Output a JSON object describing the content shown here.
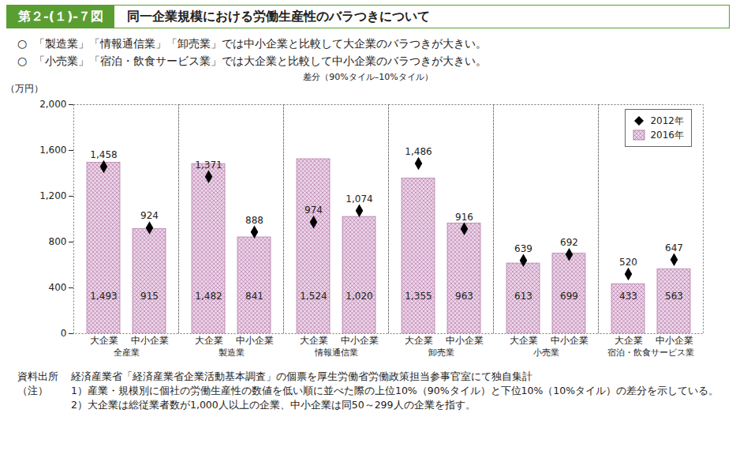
{
  "header": {
    "figure_number": "第２-(１)-７図",
    "title": "同一企業規模における労働生産性のバラつきについて"
  },
  "bullets": [
    "「製造業」「情報通信業」「卸売業」では中小企業と比較して大企業のバラつきが大きい。",
    "「小売業」「宿泊・飲食サービス業」では大企業と比較して中小企業のバラつきが大きい。"
  ],
  "notes": {
    "source_label": "資料出所",
    "source": "経済産業省「経済産業省企業活動基本調査」の個票を厚生労働省労働政策担当参事官室にて独自集計",
    "note_label": "（注）",
    "items": [
      "1）産業・規模別に個社の労働生産性の数値を低い順に並べた際の上位10%（90%タイル）と下位10%（10%タイル）の差分を示している。",
      "2）大企業は総従業者数が1,000人以上の企業、中小企業は同50～299人の企業を指す。"
    ]
  },
  "chart_data": {
    "type": "bar",
    "subtitle": "差分（90%タイル–10%タイル）",
    "y_label": "（万円）",
    "categories": [
      "大企業",
      "中小企業",
      "大企業",
      "中小企業",
      "大企業",
      "中小企業",
      "大企業",
      "中小企業",
      "大企業",
      "中小企業",
      "大企業",
      "中小企業"
    ],
    "groups": [
      "全産業",
      "製造業",
      "情報通信業",
      "卸売業",
      "小売業",
      "宿泊・飲食サービス業"
    ],
    "series": [
      {
        "name": "2012年",
        "type": "scatter",
        "marker": "diamond",
        "color": "#000000",
        "values": [
          1458,
          924,
          1371,
          888,
          974,
          1074,
          1486,
          916,
          639,
          692,
          520,
          647
        ],
        "value_labels": [
          "1,458",
          "924",
          "1,371",
          "888",
          "974",
          "1,074",
          "1,486",
          "916",
          "639",
          "692",
          "520",
          "647"
        ]
      },
      {
        "name": "2016年",
        "type": "bar",
        "color": "#ecd3e8",
        "values": [
          1493,
          915,
          1482,
          841,
          1524,
          1020,
          1355,
          963,
          613,
          699,
          433,
          563
        ],
        "value_labels": [
          "1,493",
          "915",
          "1,482",
          "841",
          "1,524",
          "1,020",
          "1,355",
          "963",
          "613",
          "699",
          "433",
          "563"
        ]
      }
    ],
    "ylim": [
      0,
      2000
    ],
    "yticks": [
      0,
      400,
      800,
      {
        "value": 1200,
        "label": "1,200"
      },
      {
        "value": 1600,
        "label": "1,600"
      },
      {
        "value": 2000,
        "label": "2,000"
      }
    ],
    "grid": false,
    "legend": "top-right",
    "data_labels": true
  }
}
